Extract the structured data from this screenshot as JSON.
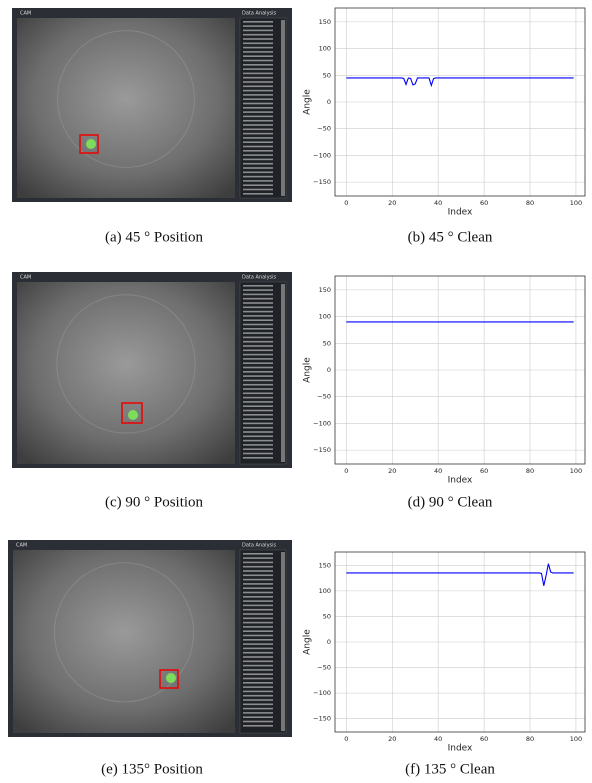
{
  "panels": [
    {
      "cam_label": "CAM",
      "analysis_label": "Data Analysis",
      "caption": "(a) 45 ° Position"
    },
    {
      "cam_label": "CAM",
      "analysis_label": "Data Analysis",
      "caption": "(c) 90 ° Position"
    },
    {
      "cam_label": "CAM",
      "analysis_label": "Data Analysis",
      "caption": "(e) 135° Position"
    }
  ],
  "chart_data": [
    {
      "type": "line",
      "caption": "(b) 45 ° Clean",
      "x_label": "Index",
      "y_label": "Angle",
      "grid": true,
      "xlim": [
        -4.95,
        103.95
      ],
      "xticks": [
        0,
        20,
        40,
        60,
        80,
        100
      ],
      "ylim": [
        -176,
        176
      ],
      "yticks": [
        {
          "value": -150,
          "label": "−150"
        },
        {
          "value": -100,
          "label": "−100"
        },
        {
          "value": -50,
          "label": "−50"
        },
        0,
        50,
        100,
        150
      ],
      "x": [
        0,
        1,
        2,
        3,
        4,
        5,
        6,
        7,
        8,
        9,
        10,
        11,
        12,
        13,
        14,
        15,
        16,
        17,
        18,
        19,
        20,
        21,
        22,
        23,
        24,
        25,
        26,
        27,
        28,
        29,
        30,
        31,
        32,
        33,
        34,
        35,
        36,
        37,
        38,
        39,
        40,
        41,
        42,
        43,
        44,
        45,
        46,
        47,
        48,
        49,
        50,
        51,
        52,
        53,
        54,
        55,
        56,
        57,
        58,
        59,
        60,
        61,
        62,
        63,
        64,
        65,
        66,
        67,
        68,
        69,
        70,
        71,
        72,
        73,
        74,
        75,
        76,
        77,
        78,
        79,
        80,
        81,
        82,
        83,
        84,
        85,
        86,
        87,
        88,
        89,
        90,
        91,
        92,
        93,
        94,
        95,
        96,
        97,
        98,
        99
      ],
      "series": [
        {
          "color": "#0000ff",
          "values": [
            45,
            45,
            45,
            45,
            45,
            45,
            45,
            45,
            45,
            45,
            45,
            45,
            45,
            45,
            45,
            45,
            45,
            45,
            45,
            45,
            45,
            45,
            45,
            45,
            45,
            44,
            33,
            45,
            44,
            32,
            34,
            45,
            45,
            45,
            45,
            45,
            45,
            31,
            44,
            45,
            45,
            45,
            45,
            45,
            45,
            45,
            45,
            45,
            45,
            45,
            45,
            45,
            45,
            45,
            45,
            45,
            45,
            45,
            45,
            45,
            45,
            45,
            45,
            45,
            45,
            45,
            45,
            45,
            45,
            45,
            45,
            45,
            45,
            45,
            45,
            45,
            45,
            45,
            45,
            45,
            45,
            45,
            45,
            45,
            45,
            45,
            45,
            45,
            45,
            45,
            45,
            45,
            45,
            45,
            45,
            45,
            45,
            45,
            45,
            45
          ]
        }
      ]
    },
    {
      "type": "line",
      "caption": "(d) 90 ° Clean",
      "x_label": "Index",
      "y_label": "Angle",
      "grid": true,
      "xlim": [
        -4.95,
        103.95
      ],
      "xticks": [
        0,
        20,
        40,
        60,
        80,
        100
      ],
      "ylim": [
        -176,
        176
      ],
      "yticks": [
        {
          "value": -150,
          "label": "−150"
        },
        {
          "value": -100,
          "label": "−100"
        },
        {
          "value": -50,
          "label": "−50"
        },
        0,
        50,
        100,
        150
      ],
      "x": [
        0,
        1,
        2,
        3,
        4,
        5,
        6,
        7,
        8,
        9,
        10,
        11,
        12,
        13,
        14,
        15,
        16,
        17,
        18,
        19,
        20,
        21,
        22,
        23,
        24,
        25,
        26,
        27,
        28,
        29,
        30,
        31,
        32,
        33,
        34,
        35,
        36,
        37,
        38,
        39,
        40,
        41,
        42,
        43,
        44,
        45,
        46,
        47,
        48,
        49,
        50,
        51,
        52,
        53,
        54,
        55,
        56,
        57,
        58,
        59,
        60,
        61,
        62,
        63,
        64,
        65,
        66,
        67,
        68,
        69,
        70,
        71,
        72,
        73,
        74,
        75,
        76,
        77,
        78,
        79,
        80,
        81,
        82,
        83,
        84,
        85,
        86,
        87,
        88,
        89,
        90,
        91,
        92,
        93,
        94,
        95,
        96,
        97,
        98,
        99
      ],
      "series": [
        {
          "color": "#0000ff",
          "values": [
            90,
            90,
            90,
            90,
            90,
            90,
            90,
            90,
            90,
            90,
            90,
            90,
            90,
            90,
            90,
            90,
            90,
            90,
            90,
            90,
            90,
            90,
            90,
            90,
            90,
            90,
            90,
            90,
            90,
            90,
            90,
            90,
            90,
            90,
            90,
            90,
            90,
            90,
            90,
            90,
            90,
            90,
            90,
            90,
            90,
            90,
            90,
            90,
            90,
            90,
            90,
            90,
            90,
            90,
            90,
            90,
            90,
            90,
            90,
            90,
            90,
            90,
            90,
            90,
            90,
            90,
            90,
            90,
            90,
            90,
            90,
            90,
            90,
            90,
            90,
            90,
            90,
            90,
            90,
            90,
            90,
            90,
            90,
            90,
            90,
            90,
            90,
            90,
            90,
            90,
            90,
            90,
            90,
            90,
            90,
            90,
            90,
            90,
            90,
            90
          ]
        }
      ]
    },
    {
      "type": "line",
      "caption": "(f) 135 ° Clean",
      "x_label": "Index",
      "y_label": "Angle",
      "grid": true,
      "xlim": [
        -4.95,
        103.95
      ],
      "xticks": [
        0,
        20,
        40,
        60,
        80,
        100
      ],
      "ylim": [
        -176,
        176
      ],
      "yticks": [
        {
          "value": -150,
          "label": "−150"
        },
        {
          "value": -100,
          "label": "−100"
        },
        {
          "value": -50,
          "label": "−50"
        },
        0,
        50,
        100,
        150
      ],
      "x": [
        0,
        1,
        2,
        3,
        4,
        5,
        6,
        7,
        8,
        9,
        10,
        11,
        12,
        13,
        14,
        15,
        16,
        17,
        18,
        19,
        20,
        21,
        22,
        23,
        24,
        25,
        26,
        27,
        28,
        29,
        30,
        31,
        32,
        33,
        34,
        35,
        36,
        37,
        38,
        39,
        40,
        41,
        42,
        43,
        44,
        45,
        46,
        47,
        48,
        49,
        50,
        51,
        52,
        53,
        54,
        55,
        56,
        57,
        58,
        59,
        60,
        61,
        62,
        63,
        64,
        65,
        66,
        67,
        68,
        69,
        70,
        71,
        72,
        73,
        74,
        75,
        76,
        77,
        78,
        79,
        80,
        81,
        82,
        83,
        84,
        85,
        86,
        87,
        88,
        89,
        90,
        91,
        92,
        93,
        94,
        95,
        96,
        97,
        98,
        99
      ],
      "series": [
        {
          "color": "#0000ff",
          "values": [
            135,
            135,
            135,
            135,
            135,
            135,
            135,
            135,
            135,
            135,
            135,
            135,
            135,
            135,
            135,
            135,
            135,
            135,
            135,
            135,
            135,
            135,
            135,
            135,
            135,
            135,
            135,
            135,
            135,
            135,
            135,
            135,
            135,
            135,
            135,
            135,
            135,
            135,
            135,
            135,
            135,
            135,
            135,
            135,
            135,
            135,
            135,
            135,
            135,
            135,
            135,
            135,
            135,
            135,
            135,
            135,
            135,
            135,
            135,
            135,
            135,
            135,
            135,
            135,
            135,
            135,
            135,
            135,
            135,
            135,
            135,
            135,
            135,
            135,
            135,
            135,
            135,
            135,
            135,
            135,
            135,
            135,
            135,
            135,
            135,
            134,
            110,
            130,
            153,
            137,
            135,
            135,
            135,
            135,
            135,
            135,
            135,
            135,
            135,
            135
          ]
        }
      ]
    }
  ]
}
